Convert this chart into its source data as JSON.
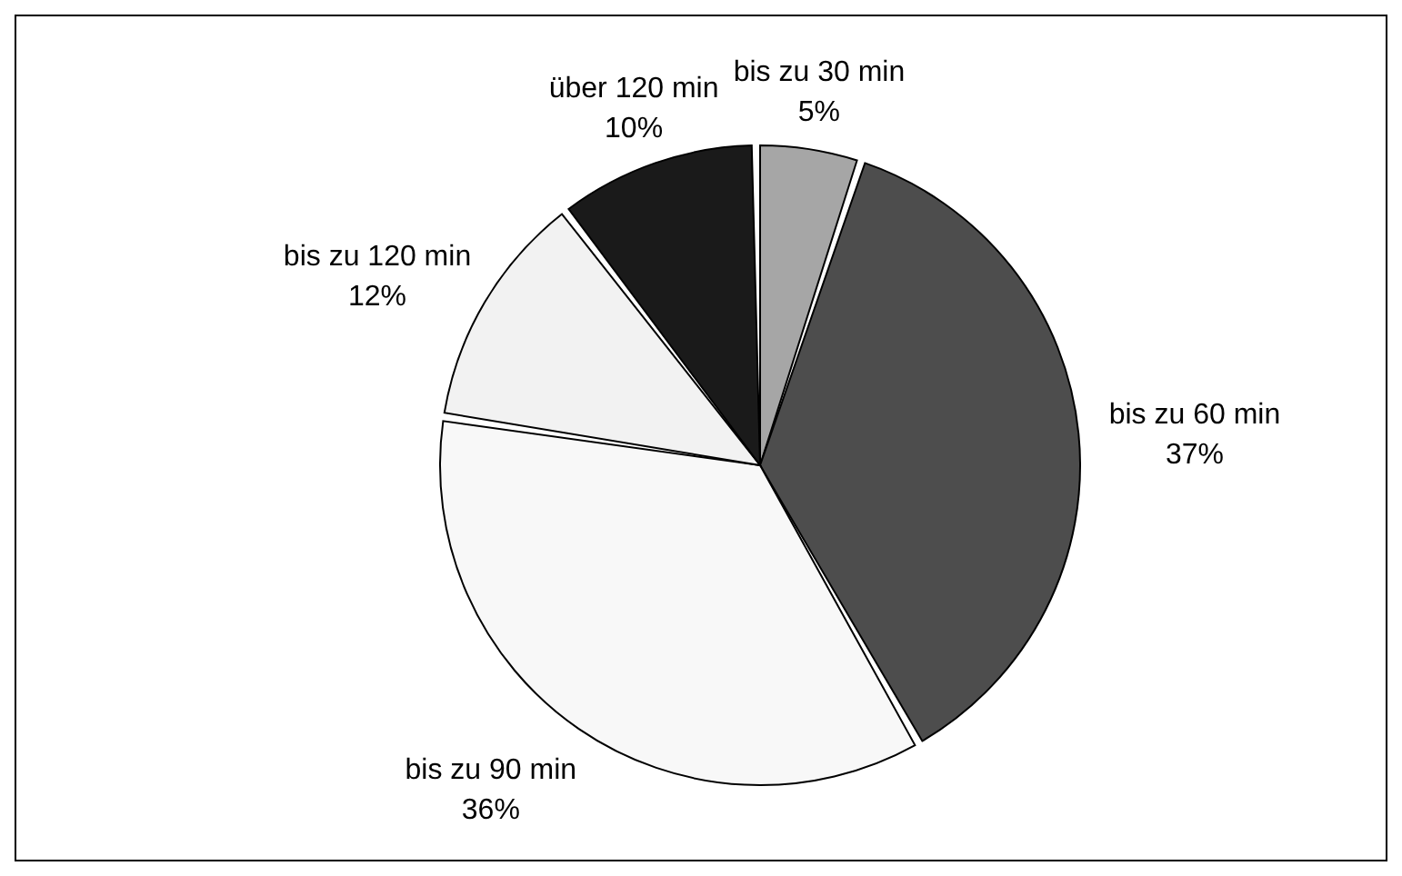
{
  "chart_data": {
    "type": "pie",
    "categories": [
      "bis zu 30 min",
      "bis zu 60 min",
      "bis zu 90 min",
      "bis zu 120 min",
      "über 120 min"
    ],
    "values": [
      5,
      37,
      36,
      12,
      10
    ],
    "value_labels": [
      "5%",
      "37%",
      "36%",
      "12%",
      "10%"
    ],
    "colors": [
      "#a6a6a6",
      "#4d4d4d",
      "#f8f8f8",
      "#f2f2f2",
      "#1a1a1a"
    ],
    "legend": false
  }
}
